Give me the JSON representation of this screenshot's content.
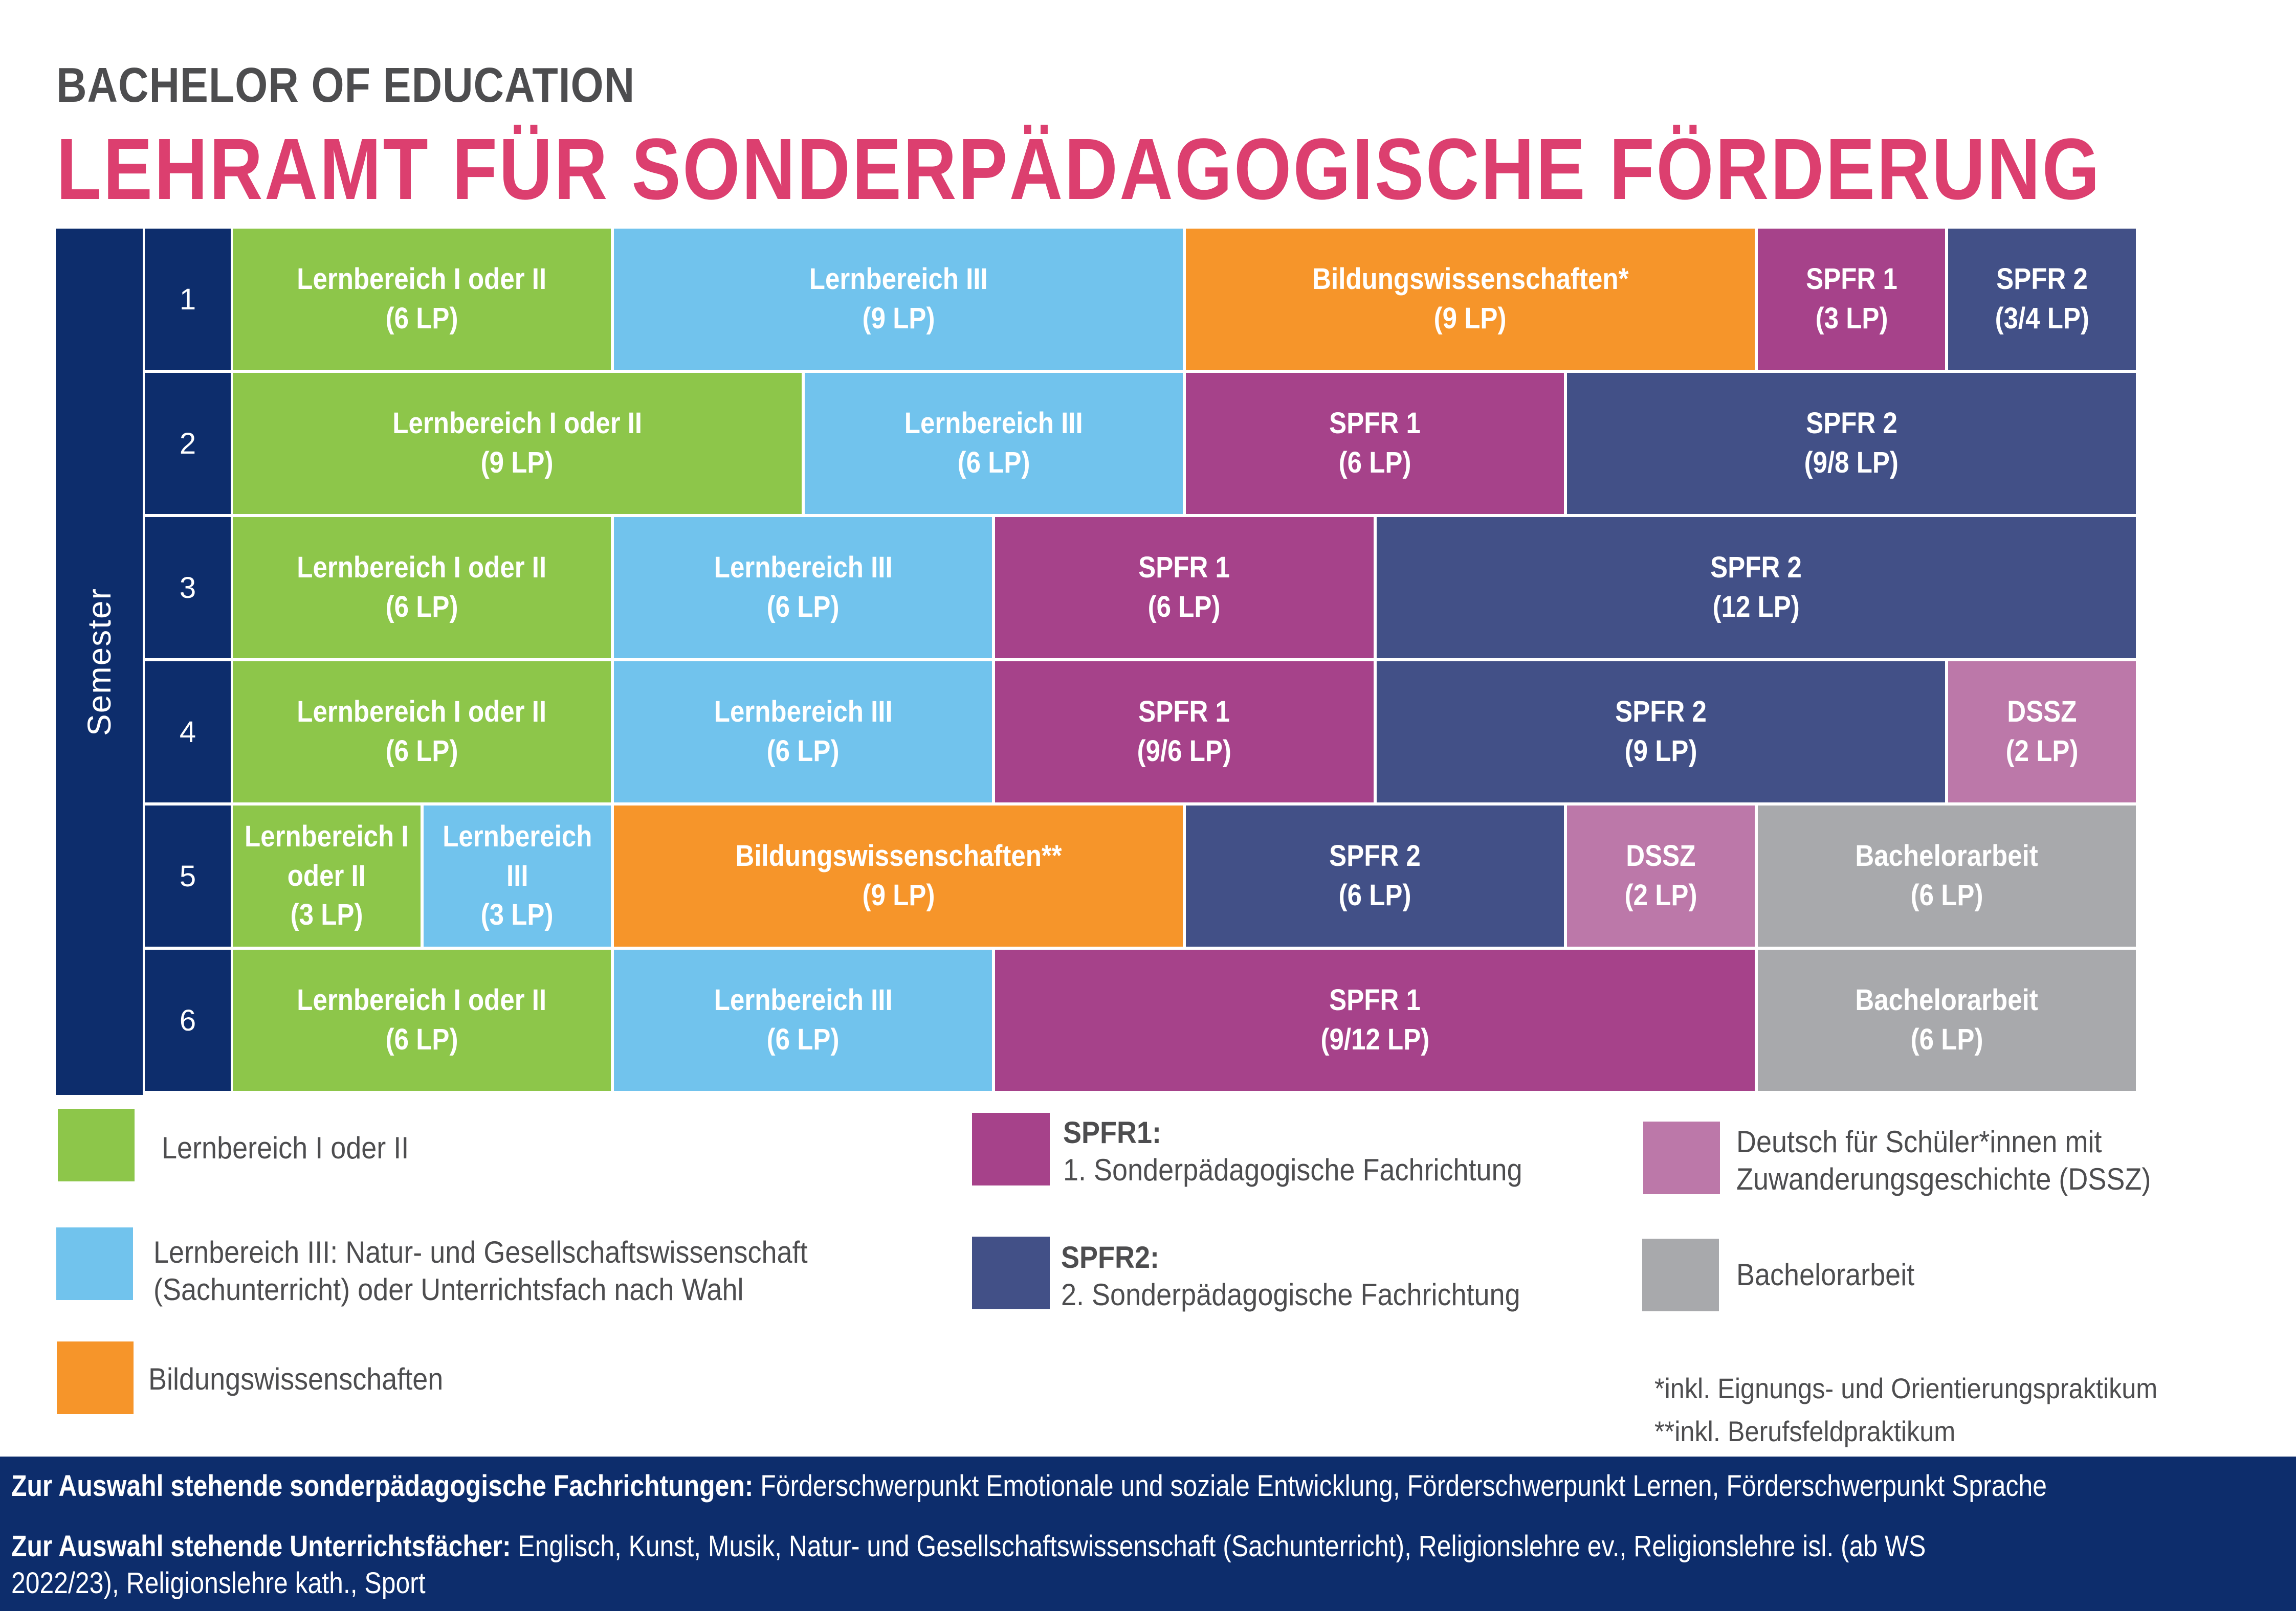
{
  "header": {
    "subtitle": "BACHELOR OF EDUCATION",
    "title": "LEHRAMT FÜR SONDERPÄDAGOGISCHE FÖRDERUNG"
  },
  "colors": {
    "lernbereich_1_2": "#8dc64a",
    "lernbereich_3": "#71c3ed",
    "bildung": "#f6952a",
    "spfr1": "#a6428a",
    "spfr2": "#425087",
    "dssz": "#bc78a9",
    "bachelor": "#a8a9ac",
    "navy": "#0d2d6c",
    "title_pink": "#dc3f6f",
    "text_gray": "#4d4d4f"
  },
  "grid": {
    "axis_label": "Semester",
    "total_units_per_semester": 10,
    "semesters": [
      {
        "number": "1",
        "modules": [
          {
            "type": "lernbereich_1_2",
            "name": "Lernbereich I oder II",
            "lp": "(6 LP)",
            "units": 2
          },
          {
            "type": "lernbereich_3",
            "name": "Lernbereich III",
            "lp": "(9 LP)",
            "units": 3
          },
          {
            "type": "bildung",
            "name": "Bildungswissenschaften*",
            "lp": "(9 LP)",
            "units": 3
          },
          {
            "type": "spfr1",
            "name": "SPFR 1",
            "lp": "(3 LP)",
            "units": 1
          },
          {
            "type": "spfr2",
            "name": "SPFR 2",
            "lp": "(3/4 LP)",
            "units": 1
          }
        ]
      },
      {
        "number": "2",
        "modules": [
          {
            "type": "lernbereich_1_2",
            "name": "Lernbereich I oder II",
            "lp": "(9 LP)",
            "units": 3
          },
          {
            "type": "lernbereich_3",
            "name": "Lernbereich III",
            "lp": "(6 LP)",
            "units": 2
          },
          {
            "type": "spfr1",
            "name": "SPFR 1",
            "lp": "(6 LP)",
            "units": 2
          },
          {
            "type": "spfr2",
            "name": "SPFR 2",
            "lp": "(9/8 LP)",
            "units": 3
          }
        ]
      },
      {
        "number": "3",
        "modules": [
          {
            "type": "lernbereich_1_2",
            "name": "Lernbereich I oder II",
            "lp": "(6 LP)",
            "units": 2
          },
          {
            "type": "lernbereich_3",
            "name": "Lernbereich III",
            "lp": "(6 LP)",
            "units": 2
          },
          {
            "type": "spfr1",
            "name": "SPFR 1",
            "lp": "(6 LP)",
            "units": 2
          },
          {
            "type": "spfr2",
            "name": "SPFR 2",
            "lp": "(12 LP)",
            "units": 4
          }
        ]
      },
      {
        "number": "4",
        "modules": [
          {
            "type": "lernbereich_1_2",
            "name": "Lernbereich I oder II",
            "lp": "(6 LP)",
            "units": 2
          },
          {
            "type": "lernbereich_3",
            "name": "Lernbereich III",
            "lp": "(6 LP)",
            "units": 2
          },
          {
            "type": "spfr1",
            "name": "SPFR 1",
            "lp": "(9/6 LP)",
            "units": 2
          },
          {
            "type": "spfr2",
            "name": "SPFR 2",
            "lp": "(9 LP)",
            "units": 3
          },
          {
            "type": "dssz",
            "name": "DSSZ",
            "lp": "(2 LP)",
            "units": 1
          }
        ]
      },
      {
        "number": "5",
        "modules": [
          {
            "type": "lernbereich_1_2",
            "name": "Lernbereich I oder II",
            "lp": "(3 LP)",
            "units": 1
          },
          {
            "type": "lernbereich_3",
            "name": "Lernbereich III",
            "lp": "(3 LP)",
            "units": 1
          },
          {
            "type": "bildung",
            "name": "Bildungswissenschaften**",
            "lp": "(9 LP)",
            "units": 3
          },
          {
            "type": "spfr2",
            "name": "SPFR 2",
            "lp": "(6 LP)",
            "units": 2
          },
          {
            "type": "dssz",
            "name": "DSSZ",
            "lp": "(2 LP)",
            "units": 1
          },
          {
            "type": "bachelor",
            "name": "Bachelorarbeit",
            "lp": "(6 LP)",
            "units": 2
          }
        ]
      },
      {
        "number": "6",
        "modules": [
          {
            "type": "lernbereich_1_2",
            "name": "Lernbereich I oder II",
            "lp": "(6 LP)",
            "units": 2
          },
          {
            "type": "lernbereich_3",
            "name": "Lernbereich III",
            "lp": "(6 LP)",
            "units": 2
          },
          {
            "type": "spfr1",
            "name": "SPFR 1",
            "lp": "(9/12 LP)",
            "units": 4
          },
          {
            "type": "bachelor",
            "name": "Bachelorarbeit",
            "lp": "(6 LP)",
            "units": 2
          }
        ]
      }
    ]
  },
  "legend": {
    "lernbereich_1_2": "Lernbereich I oder II",
    "lernbereich_3_line1": "Lernbereich III: Natur- und Gesellschaftswissenschaft",
    "lernbereich_3_line2": "(Sachunterricht) oder Unterrichtsfach nach Wahl",
    "bildung": "Bildungswissenschaften",
    "spfr1_title": "SPFR1:",
    "spfr1_desc": "1. Sonderpädagogische Fachrichtung",
    "spfr2_title": "SPFR2:",
    "spfr2_desc": "2. Sonderpädagogische Fachrichtung",
    "dssz_line1": "Deutsch für Schüler*innen mit",
    "dssz_line2": "Zuwanderungsgeschichte (DSSZ)",
    "bachelor": "Bachelorarbeit"
  },
  "notes": {
    "star": "*inkl. Eignungs- und Orientierungspraktikum",
    "double_star": "**inkl. Berufsfeldpraktikum"
  },
  "footer": {
    "fachrichtungen_label": "Zur Auswahl stehende sonderpädagogische Fachrichtungen:",
    "fachrichtungen_value": " Förderschwerpunkt Emotionale und soziale Entwicklung, Förderschwerpunkt Lernen, Förderschwerpunkt Sprache",
    "faecher_label": "Zur Auswahl stehende Unterrichtsfächer:",
    "faecher_value_line1": " Englisch, Kunst, Musik, Natur- und Gesellschaftswissenschaft (Sachunterricht), Religionslehre ev., Religionslehre isl. (ab WS",
    "faecher_value_line2": "2022/23), Religionslehre kath., Sport"
  }
}
